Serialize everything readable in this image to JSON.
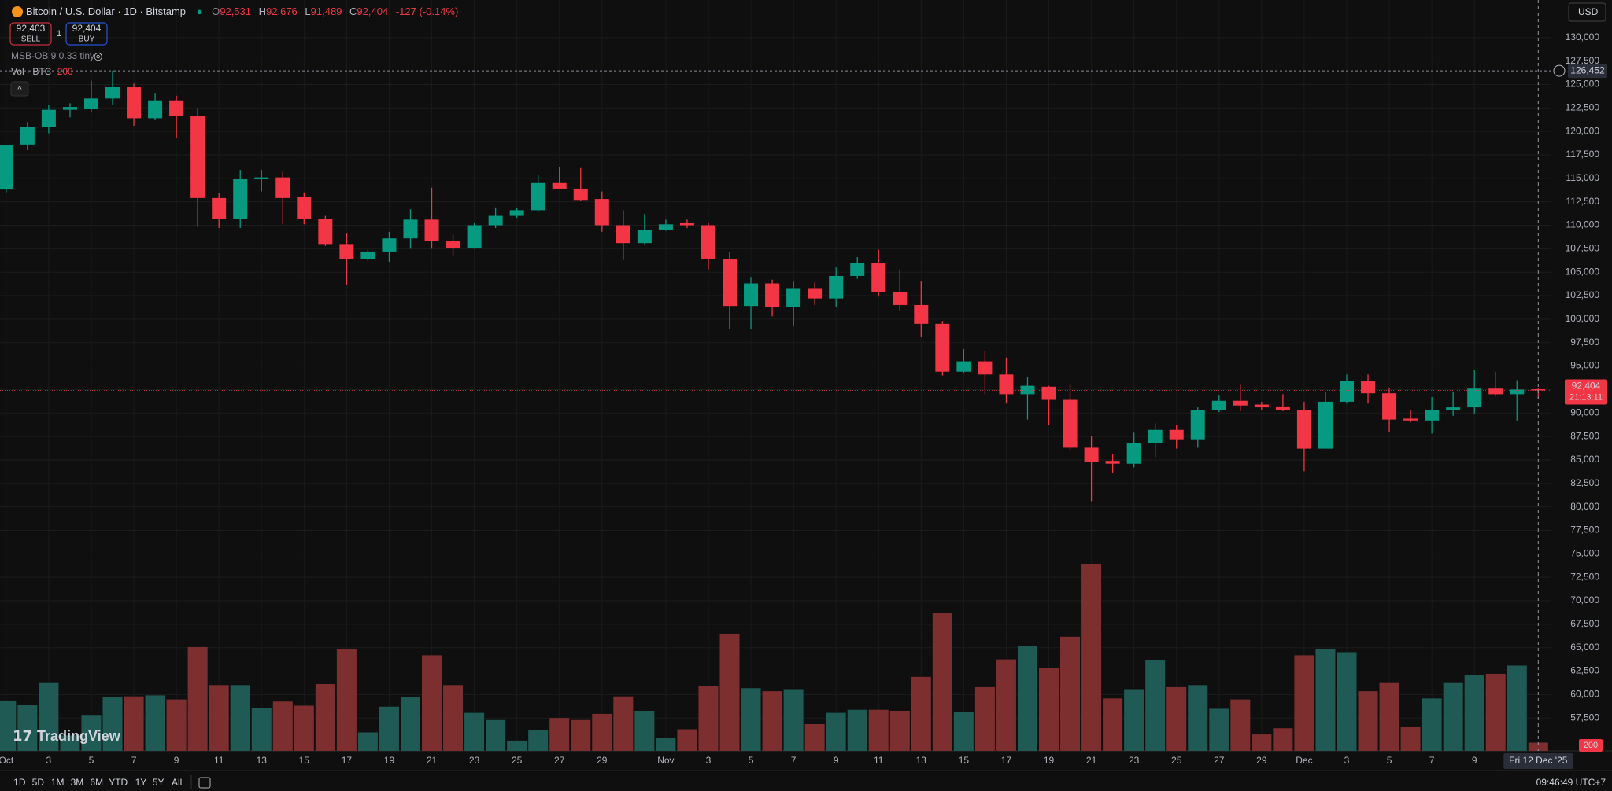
{
  "legend": {
    "symbol": "Bitcoin / U.S. Dollar · 1D · Bitstamp",
    "o": "O",
    "o_value": "92,531",
    "h": "H",
    "h_value": "92,676",
    "l": "L",
    "l_value": "91,489",
    "c": "C",
    "c_value": "92,404",
    "change": "-127 (-0.14%)"
  },
  "trade": {
    "sell_price": "92,403",
    "sell": "SELL",
    "quantity": "1",
    "buy_price": "92,404",
    "buy": "BUY"
  },
  "indicators": {
    "orderblocks": "MSB-OB 9 0.33 tiny",
    "volume": "Vol · BTC"
  },
  "toolbar": {
    "ranges": [
      "1D",
      "5D",
      "1M",
      "3M",
      "6M",
      "YTD",
      "1Y",
      "5Y",
      "All"
    ],
    "clock": "09:46:49 UTC+7",
    "currency": "USD",
    "logo": "TradingView"
  },
  "chart_data": {
    "type": "candlestick",
    "categories": [
      "Oct",
      null,
      "3",
      null,
      "5",
      null,
      "7",
      null,
      "9",
      null,
      "11",
      null,
      "13",
      null,
      "15",
      null,
      "17",
      null,
      "19",
      null,
      "21",
      null,
      "23",
      null,
      "25",
      null,
      "27",
      null,
      "29",
      null,
      null,
      "Nov",
      null,
      "3",
      null,
      "5",
      null,
      "7",
      null,
      "9",
      null,
      "11",
      null,
      "13",
      null,
      "15",
      null,
      "17",
      null,
      "19",
      null,
      "21",
      null,
      "23",
      null,
      "25",
      null,
      "27",
      null,
      "29",
      null,
      "Dec",
      null,
      "3",
      null,
      "5",
      null,
      "7",
      null,
      "9",
      null,
      null,
      null
    ],
    "open": [
      113800,
      118600,
      120500,
      122300,
      122400,
      123500,
      124700,
      121400,
      123300,
      121600,
      112900,
      110700,
      114900,
      115100,
      113000,
      110700,
      108000,
      106400,
      107200,
      108600,
      110600,
      108300,
      107600,
      110000,
      111000,
      111600,
      114500,
      113900,
      112800,
      110000,
      108100,
      109500,
      110300,
      110000,
      106400,
      101400,
      103800,
      101300,
      103300,
      102200,
      104600,
      106000,
      102900,
      101500,
      99500,
      94400,
      95500,
      94100,
      92000,
      92800,
      91400,
      86300,
      84900,
      84600,
      86800,
      88200,
      87200,
      90300,
      91300,
      90900,
      90700,
      90300,
      86200,
      91200,
      93400,
      92100,
      89400,
      89200,
      90300,
      90600,
      92600,
      92000,
      92531
    ],
    "high": [
      118600,
      121000,
      122800,
      123000,
      125400,
      126452,
      125100,
      124100,
      123800,
      122500,
      113400,
      115900,
      115900,
      115700,
      113500,
      111000,
      109200,
      107400,
      109300,
      111700,
      114000,
      109000,
      110300,
      111900,
      111800,
      115400,
      116200,
      116100,
      113600,
      111600,
      111200,
      110600,
      110600,
      110300,
      107200,
      104500,
      104200,
      104000,
      103900,
      105500,
      106600,
      107400,
      105300,
      104000,
      99800,
      96800,
      96600,
      95900,
      93800,
      92900,
      93100,
      87500,
      85600,
      87900,
      88900,
      88700,
      90600,
      91900,
      93000,
      91200,
      92000,
      91200,
      92300,
      94100,
      94100,
      92700,
      90300,
      91700,
      92300,
      94600,
      94400,
      93500,
      92676
    ],
    "low": [
      113500,
      118000,
      119800,
      121500,
      122000,
      122800,
      120600,
      121200,
      119300,
      109800,
      109700,
      109700,
      113600,
      110100,
      110100,
      107800,
      103600,
      106200,
      106100,
      107500,
      107500,
      106700,
      107500,
      109700,
      110800,
      111500,
      113900,
      112600,
      109300,
      106300,
      108000,
      109400,
      109700,
      105300,
      98900,
      98900,
      100300,
      99300,
      101500,
      101300,
      104300,
      102400,
      100900,
      98100,
      94000,
      94200,
      92000,
      91000,
      89300,
      88700,
      86100,
      80600,
      83600,
      84200,
      85300,
      86200,
      86300,
      90100,
      90200,
      90300,
      90200,
      83800,
      86200,
      91000,
      91000,
      88000,
      89000,
      87800,
      89700,
      89900,
      91800,
      89200,
      91489
    ],
    "close": [
      118500,
      120500,
      122300,
      122600,
      123500,
      124700,
      121400,
      123300,
      121600,
      112900,
      110700,
      114900,
      115100,
      112900,
      110700,
      108000,
      106400,
      107200,
      108600,
      110600,
      108300,
      107600,
      110000,
      111000,
      111600,
      114500,
      113900,
      112700,
      110000,
      108100,
      109500,
      110100,
      110000,
      106400,
      101400,
      103800,
      101300,
      103300,
      102200,
      104600,
      106000,
      102900,
      101500,
      99500,
      94400,
      95500,
      94100,
      92000,
      92900,
      91400,
      86300,
      84800,
      84600,
      86800,
      88200,
      87200,
      90300,
      91300,
      90800,
      90600,
      90300,
      86200,
      91200,
      93400,
      92100,
      89300,
      89200,
      90300,
      90600,
      92600,
      92000,
      92500,
      92404
    ],
    "volume": {
      "name": "Vol · BTC",
      "values": [
        1225,
        1125,
        1650,
        375,
        875,
        1300,
        1325,
        1350,
        1250,
        2525,
        1600,
        1600,
        1050,
        1200,
        1100,
        1625,
        2475,
        450,
        1075,
        1300,
        2325,
        1600,
        925,
        750,
        250,
        500,
        800,
        750,
        900,
        1325,
        975,
        325,
        525,
        1575,
        2850,
        1525,
        1450,
        1500,
        650,
        925,
        1000,
        1000,
        975,
        1800,
        3350,
        950,
        1550,
        2225,
        2550,
        2025,
        2775,
        4550,
        1275,
        1500,
        2200,
        1550,
        1600,
        1025,
        1250,
        400,
        550,
        2325,
        2475,
        2400,
        1450,
        1650,
        575,
        1275,
        1650,
        1850,
        1875,
        2075,
        200
      ],
      "up_color": "#1f5a54",
      "down_color": "#7d2f2f"
    },
    "up_color": "#089981",
    "down_color": "#f23645",
    "ylim": [
      54000,
      134000
    ],
    "yticks": [
      {
        "value": 57500,
        "label": "57,500"
      },
      {
        "value": 60000,
        "label": "60,000"
      },
      {
        "value": 62500,
        "label": "62,500"
      },
      {
        "value": 65000,
        "label": "65,000"
      },
      {
        "value": 67500,
        "label": "67,500"
      },
      {
        "value": 70000,
        "label": "70,000"
      },
      {
        "value": 72500,
        "label": "72,500"
      },
      {
        "value": 75000,
        "label": "75,000"
      },
      {
        "value": 77500,
        "label": "77,500"
      },
      {
        "value": 80000,
        "label": "80,000"
      },
      {
        "value": 82500,
        "label": "82,500"
      },
      {
        "value": 85000,
        "label": "85,000"
      },
      {
        "value": 87500,
        "label": "87,500"
      },
      {
        "value": 90000,
        "label": "90,000"
      },
      {
        "value": 92500,
        "label": "92,500"
      },
      {
        "value": 95000,
        "label": "95,000"
      },
      {
        "value": 97500,
        "label": "97,500"
      },
      {
        "value": 100000,
        "label": "100,000"
      },
      {
        "value": 102500,
        "label": "102,500"
      },
      {
        "value": 105000,
        "label": "105,000"
      },
      {
        "value": 107500,
        "label": "107,500"
      },
      {
        "value": 110000,
        "label": "110,000"
      },
      {
        "value": 112500,
        "label": "112,500"
      },
      {
        "value": 115000,
        "label": "115,000"
      },
      {
        "value": 117500,
        "label": "117,500"
      },
      {
        "value": 120000,
        "label": "120,000"
      },
      {
        "value": 122500,
        "label": "122,500"
      },
      {
        "value": 125000,
        "label": "125,000"
      },
      {
        "value": 127500,
        "label": "127,500"
      },
      {
        "value": 130000,
        "label": "130,000"
      }
    ],
    "grid": true,
    "high_marker": {
      "value": 126452,
      "label": "126,452"
    },
    "last_price": {
      "value": 92404,
      "label": "92,404",
      "countdown": "21:13:11"
    },
    "crosshair_label": "Fri 12 Dec '25"
  }
}
